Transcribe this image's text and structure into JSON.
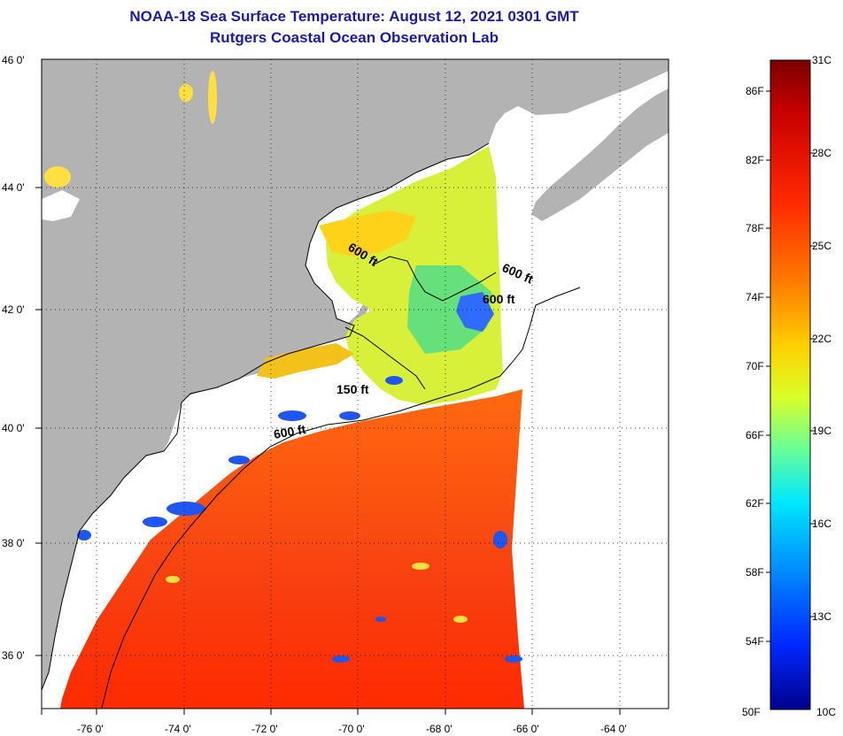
{
  "title": "NOAA-18 Sea Surface Temperature:  August 12, 2021 0301 GMT",
  "subtitle": "Rutgers Coastal Ocean Observation Lab",
  "axes": {
    "lat_ticks": [
      "46 0'",
      "44 0'",
      "42 0'",
      "40 0'",
      "38 0'",
      "36 0'"
    ],
    "lon_ticks": [
      "-76 0'",
      "-74 0'",
      "-72 0'",
      "-70 0'",
      "-68 0'",
      "-66 0'",
      "-64 0'"
    ]
  },
  "contours": [
    {
      "label": "600 ft"
    },
    {
      "label": "600 ft"
    },
    {
      "label": "600 ft"
    },
    {
      "label": "150 ft"
    },
    {
      "label": "600 ft"
    }
  ],
  "colorbar": {
    "min_label": "50F",
    "max_label": "10C",
    "top_label": "31C",
    "fahrenheit": [
      "86F",
      "82F",
      "78F",
      "74F",
      "70F",
      "66F",
      "62F",
      "58F",
      "54F"
    ],
    "celsius": [
      "28C",
      "25C",
      "22C",
      "19C",
      "16C",
      "13C"
    ],
    "colors": [
      "#7a0000",
      "#c80000",
      "#ff2a00",
      "#ff7a00",
      "#ffd000",
      "#d8ff2a",
      "#66ff99",
      "#00e8ff",
      "#0090ff",
      "#0028ff",
      "#00008a"
    ]
  },
  "colors": {
    "land": "#b3b3b3",
    "ocean_warm": "#f84a10",
    "ocean_mid": "#ffd21a",
    "ocean_cool": "#2d6cff",
    "title": "#1a1aa8"
  }
}
